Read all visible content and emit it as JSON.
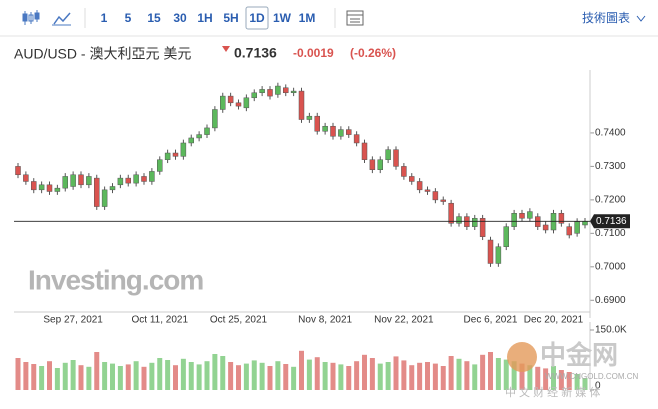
{
  "toolbar": {
    "intervals": [
      "1",
      "5",
      "15",
      "30",
      "1H",
      "5H",
      "1D",
      "1W",
      "1M"
    ],
    "selected": "1D",
    "menu": "技術圖表"
  },
  "header": {
    "title": "AUD/USD - 澳大利亞元 美元",
    "change": "-0.0019",
    "change_percent": "(-0.26%)"
  },
  "watermarks": {
    "brand": "Investing.com",
    "site": "中金网",
    "url": "WWW.CNGOLD.COM.CN",
    "tagline": "中 文 财 经 新 媒 体"
  },
  "chart_data": {
    "type": "candlestick",
    "categories": [
      null,
      null,
      null,
      null,
      null,
      null,
      null,
      "Sep 27, 2021",
      null,
      null,
      null,
      null,
      null,
      null,
      null,
      null,
      null,
      null,
      "Oct 11, 2021",
      null,
      null,
      null,
      null,
      null,
      null,
      null,
      null,
      null,
      "Oct 25, 2021",
      null,
      null,
      null,
      null,
      null,
      null,
      null,
      null,
      null,
      null,
      "Nov 8, 2021",
      null,
      null,
      null,
      null,
      null,
      null,
      null,
      null,
      null,
      "Nov 22, 2021",
      null,
      null,
      null,
      null,
      null,
      null,
      null,
      null,
      null,
      null,
      "Dec 6, 2021",
      null,
      null,
      null,
      null,
      null,
      null,
      null,
      "Dec 20, 2021",
      null,
      null,
      null,
      null
    ],
    "open": [
      0.73,
      0.7275,
      0.7255,
      0.723,
      0.7245,
      0.7225,
      0.7235,
      0.724,
      0.7275,
      0.7245,
      0.7265,
      0.718,
      0.723,
      0.7245,
      0.7265,
      0.725,
      0.727,
      0.7255,
      0.7285,
      0.732,
      0.734,
      0.733,
      0.737,
      0.7385,
      0.7395,
      0.7415,
      0.747,
      0.751,
      0.749,
      0.7475,
      0.7505,
      0.752,
      0.753,
      0.7515,
      0.7535,
      0.752,
      0.7525,
      0.744,
      0.745,
      0.7405,
      0.742,
      0.739,
      0.741,
      0.7395,
      0.737,
      0.732,
      0.729,
      0.732,
      0.735,
      0.73,
      0.727,
      0.7255,
      0.723,
      0.7225,
      0.72,
      0.719,
      0.713,
      0.715,
      0.712,
      0.7145,
      0.708,
      0.701,
      0.706,
      0.712,
      0.716,
      0.7145,
      0.715,
      0.7125,
      0.711,
      0.716,
      0.712,
      0.71,
      0.7125
    ],
    "high": [
      0.731,
      0.7285,
      0.7265,
      0.7255,
      0.7255,
      0.7245,
      0.728,
      0.7285,
      0.7285,
      0.728,
      0.7275,
      0.724,
      0.725,
      0.7275,
      0.7275,
      0.7285,
      0.728,
      0.7295,
      0.733,
      0.735,
      0.735,
      0.738,
      0.7395,
      0.7405,
      0.7425,
      0.748,
      0.752,
      0.752,
      0.75,
      0.7515,
      0.753,
      0.754,
      0.754,
      0.755,
      0.7545,
      0.7535,
      0.7535,
      0.746,
      0.746,
      0.743,
      0.743,
      0.742,
      0.742,
      0.7405,
      0.738,
      0.733,
      0.733,
      0.736,
      0.736,
      0.731,
      0.728,
      0.7265,
      0.724,
      0.7235,
      0.721,
      0.72,
      0.716,
      0.716,
      0.7155,
      0.7155,
      0.709,
      0.707,
      0.713,
      0.717,
      0.717,
      0.7175,
      0.716,
      0.7135,
      0.717,
      0.717,
      0.713,
      0.7145,
      0.7146
    ],
    "low": [
      0.7265,
      0.7245,
      0.722,
      0.722,
      0.7215,
      0.7215,
      0.7225,
      0.723,
      0.7235,
      0.7235,
      0.717,
      0.717,
      0.722,
      0.7235,
      0.724,
      0.724,
      0.7245,
      0.7245,
      0.7275,
      0.731,
      0.732,
      0.732,
      0.736,
      0.7375,
      0.7385,
      0.7405,
      0.746,
      0.748,
      0.747,
      0.7465,
      0.7495,
      0.751,
      0.75,
      0.7505,
      0.751,
      0.751,
      0.743,
      0.743,
      0.7395,
      0.7395,
      0.738,
      0.738,
      0.7385,
      0.736,
      0.731,
      0.728,
      0.728,
      0.731,
      0.729,
      0.726,
      0.7245,
      0.722,
      0.7215,
      0.719,
      0.7185,
      0.712,
      0.712,
      0.711,
      0.711,
      0.708,
      0.7,
      0.7,
      0.705,
      0.711,
      0.7135,
      0.7135,
      0.711,
      0.71,
      0.71,
      0.712,
      0.7085,
      0.709,
      0.7115
    ],
    "close": [
      0.7275,
      0.7255,
      0.723,
      0.7245,
      0.7225,
      0.7235,
      0.727,
      0.7275,
      0.7245,
      0.727,
      0.718,
      0.723,
      0.724,
      0.7265,
      0.725,
      0.7275,
      0.7255,
      0.7285,
      0.732,
      0.734,
      0.733,
      0.737,
      0.7385,
      0.7395,
      0.7415,
      0.747,
      0.751,
      0.749,
      0.748,
      0.7505,
      0.752,
      0.753,
      0.751,
      0.754,
      0.752,
      0.7525,
      0.744,
      0.745,
      0.7405,
      0.742,
      0.739,
      0.741,
      0.7395,
      0.737,
      0.732,
      0.729,
      0.732,
      0.735,
      0.73,
      0.727,
      0.7255,
      0.723,
      0.7225,
      0.72,
      0.7195,
      0.713,
      0.715,
      0.712,
      0.7145,
      0.709,
      0.701,
      0.706,
      0.712,
      0.716,
      0.7145,
      0.7165,
      0.712,
      0.711,
      0.716,
      0.713,
      0.7095,
      0.7135,
      0.7136
    ],
    "volume": [
      80000,
      70000,
      65000,
      60000,
      72000,
      55000,
      68000,
      75000,
      62000,
      58000,
      95000,
      70000,
      66000,
      60000,
      64000,
      72000,
      58000,
      68000,
      80000,
      75000,
      62000,
      78000,
      70000,
      64000,
      72000,
      90000,
      85000,
      70000,
      62000,
      66000,
      74000,
      68000,
      60000,
      72000,
      65000,
      58000,
      98000,
      76000,
      82000,
      70000,
      68000,
      64000,
      60000,
      72000,
      88000,
      80000,
      66000,
      70000,
      84000,
      74000,
      62000,
      68000,
      70000,
      66000,
      60000,
      85000,
      78000,
      72000,
      64000,
      88000,
      95000,
      80000,
      76000,
      72000,
      66000,
      62000,
      58000,
      54000,
      60000,
      50000,
      45000,
      40000,
      30000
    ],
    "up_color": "#5cb85c",
    "down_color": "#d9534f",
    "volume_up_color": "#92d392",
    "volume_down_color": "#e38b88",
    "ylim": [
      0.6865,
      0.7588
    ],
    "yticks": [
      {
        "value": 0.69,
        "label": "0.6900"
      },
      {
        "value": 0.7,
        "label": "0.7000"
      },
      {
        "value": 0.71,
        "label": "0.7100"
      },
      {
        "value": 0.72,
        "label": "0.7200"
      },
      {
        "value": 0.73,
        "label": "0.7300"
      },
      {
        "value": 0.74,
        "label": "0.7400"
      }
    ],
    "volume_ylim": [
      0,
      150000
    ],
    "volume_yticks": [
      0,
      {
        "value": 150000,
        "label": "150.0K"
      }
    ],
    "last_price": {
      "value": 0.7136,
      "label": "0.7136"
    }
  }
}
